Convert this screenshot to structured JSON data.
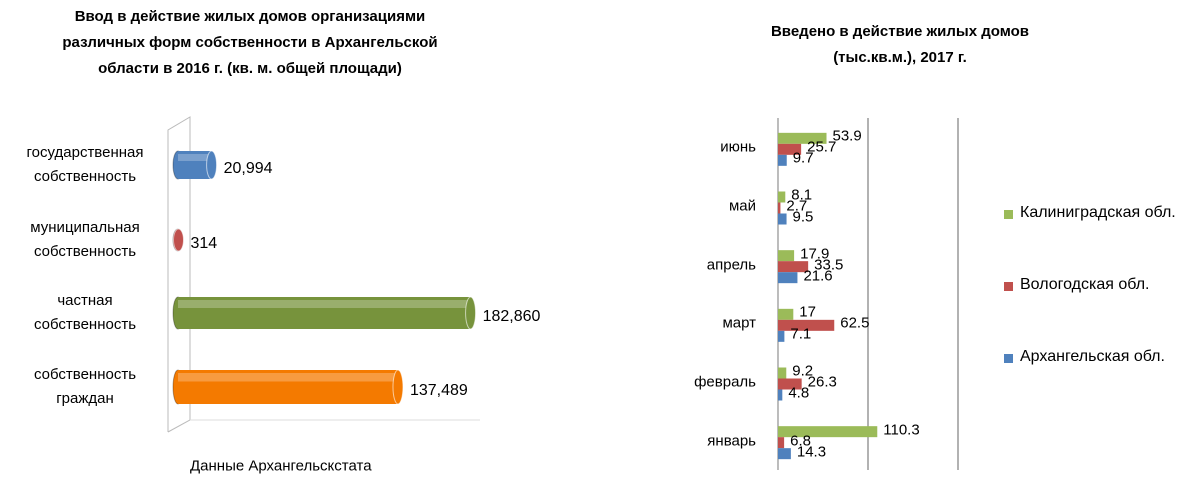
{
  "chart_data": [
    {
      "type": "cylinder-bar",
      "title": "Ввод  в действие жилых домов организациями различных форм собственности в Архангельской области в 2016 г. (кв. м. общей площади)",
      "categories": [
        "государственная собственность",
        "муниципальная собственность",
        "частная собственность",
        "собственность граждан"
      ],
      "values": [
        20994,
        314,
        182860,
        137489
      ],
      "value_labels": [
        "20,994",
        "314",
        "182,860",
        "137,489"
      ],
      "colors": [
        "#4f81bd",
        "#c0504d",
        "#77933c",
        "#f47a00"
      ],
      "xlim": [
        0,
        200000
      ],
      "source": "Данные Архангельскстата"
    },
    {
      "type": "grouped-bar",
      "title": "Введено в действие жилых домов (тыс.кв.м.), 2017 г.",
      "categories": [
        "январь",
        "февраль",
        "март",
        "апрель",
        "май",
        "июнь"
      ],
      "series": [
        {
          "name": "Калиниградская обл.",
          "color": "#9bbb59",
          "values": [
            110.3,
            9.2,
            17,
            17.9,
            8.1,
            53.9
          ]
        },
        {
          "name": "Вологодская обл.",
          "color": "#c0504d",
          "values": [
            6.8,
            26.3,
            62.5,
            33.5,
            2.7,
            25.7
          ]
        },
        {
          "name": "Архангельская обл.",
          "color": "#4f81bd",
          "values": [
            14.3,
            4.8,
            7.1,
            21.6,
            9.5,
            9.7
          ]
        }
      ],
      "xlim": [
        0,
        200
      ],
      "xticks": [
        0,
        100,
        200
      ],
      "grid": true,
      "legend": "right"
    }
  ]
}
